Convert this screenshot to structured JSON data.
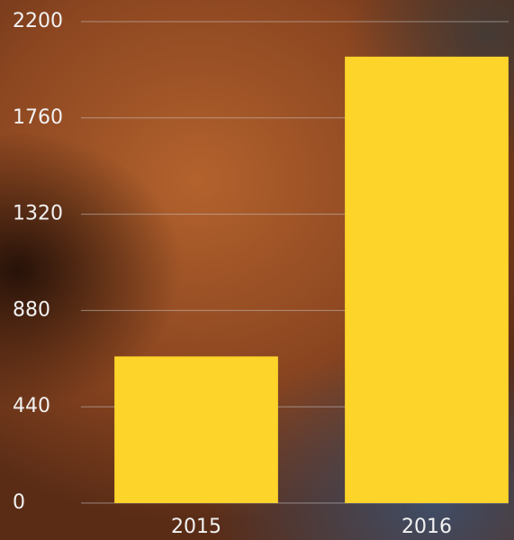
{
  "chart_data": {
    "type": "bar",
    "categories": [
      "2015",
      "2016"
    ],
    "values": [
      670,
      2040
    ],
    "color": "#fcd42a",
    "ylim": [
      0,
      2200
    ],
    "yticks": [
      0,
      440,
      880,
      1320,
      1760,
      2200
    ],
    "grid": true
  }
}
